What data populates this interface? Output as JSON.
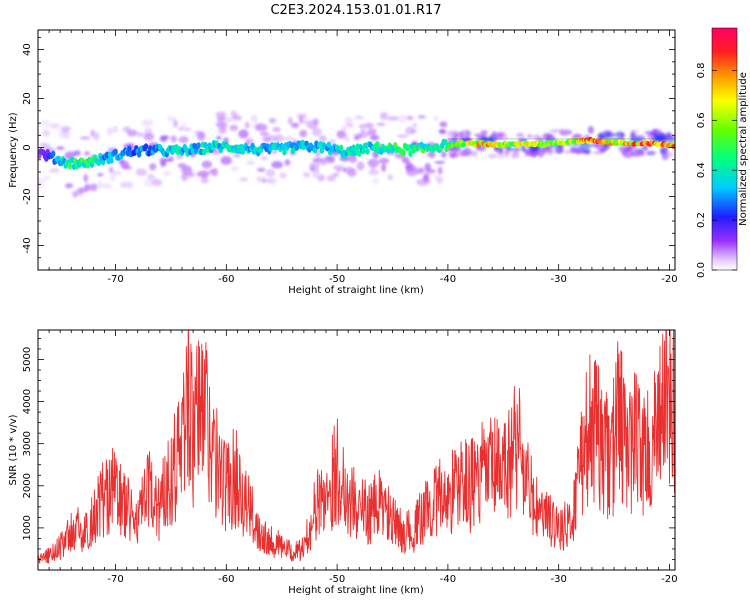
{
  "title": "C2E3.2024.153.01.01.R17",
  "spectrogram": {
    "xlabel": "Height of straight line (km)",
    "ylabel": "Frequency (Hz)",
    "xlim": [
      -77,
      -19.5
    ],
    "ylim": [
      -50,
      48
    ],
    "xticks": [
      "-70",
      "-60",
      "-50",
      "-40",
      "-30",
      "-20"
    ],
    "yticks": [
      "-40",
      "-20",
      "0",
      "20",
      "40"
    ],
    "colorbar": {
      "label": "Normalized spectral amplitude",
      "range": [
        0,
        0.97
      ],
      "ticks": [
        "0.0",
        "0.2",
        "0.4",
        "0.6",
        "0.8"
      ],
      "colormap": "rainbow (white-violet-blue-cyan-green-yellow-orange-red-magenta)"
    }
  },
  "chart_data": [
    {
      "type": "heatmap",
      "title": "C2E3.2024.153.01.01.R17",
      "xlabel": "Height of straight line (km)",
      "ylabel": "Frequency (Hz)",
      "xlim": [
        -77,
        -19.5
      ],
      "ylim": [
        -50,
        48
      ],
      "ridge": [
        {
          "x": -77.0,
          "freq": -2.0,
          "amp": 0.1
        },
        {
          "x": -76.0,
          "freq": -3.5,
          "amp": 0.2
        },
        {
          "x": -74.5,
          "freq": -6.0,
          "amp": 0.45
        },
        {
          "x": -73.0,
          "freq": -6.5,
          "amp": 0.5
        },
        {
          "x": -71.0,
          "freq": -4.5,
          "amp": 0.35
        },
        {
          "x": -69.0,
          "freq": -2.0,
          "amp": 0.3
        },
        {
          "x": -67.0,
          "freq": -1.0,
          "amp": 0.32
        },
        {
          "x": -65.0,
          "freq": -1.5,
          "amp": 0.4
        },
        {
          "x": -63.0,
          "freq": -1.0,
          "amp": 0.38
        },
        {
          "x": -61.0,
          "freq": 0.5,
          "amp": 0.4
        },
        {
          "x": -59.0,
          "freq": 0.0,
          "amp": 0.38
        },
        {
          "x": -57.0,
          "freq": -1.0,
          "amp": 0.36
        },
        {
          "x": -55.0,
          "freq": -0.5,
          "amp": 0.38
        },
        {
          "x": -53.0,
          "freq": 0.5,
          "amp": 0.4
        },
        {
          "x": -51.0,
          "freq": 0.0,
          "amp": 0.36
        },
        {
          "x": -49.0,
          "freq": -2.0,
          "amp": 0.42
        },
        {
          "x": -47.0,
          "freq": 0.0,
          "amp": 0.4
        },
        {
          "x": -45.0,
          "freq": -0.5,
          "amp": 0.48
        },
        {
          "x": -43.0,
          "freq": -1.0,
          "amp": 0.5
        },
        {
          "x": -41.0,
          "freq": 0.5,
          "amp": 0.45
        },
        {
          "x": -39.0,
          "freq": 1.5,
          "amp": 0.55
        },
        {
          "x": -37.0,
          "freq": 1.5,
          "amp": 0.8
        },
        {
          "x": -35.0,
          "freq": 1.0,
          "amp": 0.6
        },
        {
          "x": -33.0,
          "freq": 1.5,
          "amp": 0.7
        },
        {
          "x": -31.0,
          "freq": 1.5,
          "amp": 0.72
        },
        {
          "x": -29.0,
          "freq": 2.5,
          "amp": 0.65
        },
        {
          "x": -27.0,
          "freq": 3.0,
          "amp": 0.85
        },
        {
          "x": -25.0,
          "freq": 2.0,
          "amp": 0.75
        },
        {
          "x": -23.0,
          "freq": 1.5,
          "amp": 0.85
        },
        {
          "x": -21.0,
          "freq": 1.5,
          "amp": 0.9
        },
        {
          "x": -20.0,
          "freq": 1.0,
          "amp": 0.8
        }
      ]
    },
    {
      "type": "line",
      "xlabel": "Height of straight line (km)",
      "ylabel": "SNR (10 * v/v)",
      "xlim": [
        -77,
        -19.5
      ],
      "ylim": [
        0,
        5700
      ],
      "xticks": [
        "-70",
        "-60",
        "-50",
        "-40",
        "-30",
        "-20"
      ],
      "yticks": [
        "1000",
        "2000",
        "3000",
        "4000",
        "5000"
      ],
      "color": "#e83030",
      "series": [
        {
          "x": [
            -77,
            -76,
            -75,
            -74,
            -73.5,
            -73,
            -72,
            -71,
            -70,
            -69,
            -68,
            -67,
            -66,
            -65,
            -64,
            -63.5,
            -63,
            -62.5,
            -62,
            -61,
            -60,
            -59,
            -58,
            -57,
            -56,
            -55,
            -54,
            -53,
            -52,
            -51,
            -50.5,
            -50,
            -49,
            -48,
            -47,
            -46,
            -45,
            -44,
            -43,
            -42,
            -41,
            -40,
            -39,
            -38,
            -37,
            -36,
            -35,
            -34,
            -33.5,
            -33,
            -32,
            -31,
            -30,
            -29,
            -28.5,
            -28,
            -27,
            -26,
            -25.5,
            -25,
            -24.5,
            -24,
            -23,
            -22,
            -21,
            -20.3,
            -20,
            -19.5
          ],
          "y": [
            300,
            450,
            700,
            1100,
            1300,
            900,
            1600,
            2200,
            2400,
            1800,
            1500,
            2300,
            1900,
            3000,
            3600,
            5700,
            3800,
            4600,
            5000,
            3200,
            2500,
            2800,
            1800,
            1200,
            900,
            700,
            500,
            650,
            1800,
            2300,
            2600,
            3000,
            2200,
            1800,
            1700,
            2000,
            1400,
            1100,
            1200,
            1800,
            2100,
            2200,
            2600,
            2500,
            2800,
            3000,
            2800,
            3700,
            3900,
            2700,
            1800,
            1500,
            1300,
            1300,
            2100,
            3400,
            4300,
            3600,
            3300,
            3700,
            5000,
            3600,
            3900,
            3400,
            4000,
            5600,
            4800,
            4500
          ]
        }
      ]
    }
  ]
}
